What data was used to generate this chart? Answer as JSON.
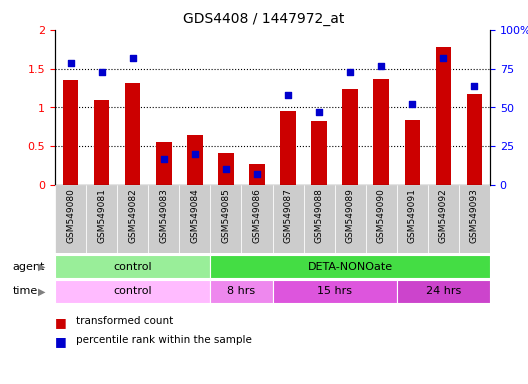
{
  "title": "GDS4408 / 1447972_at",
  "samples": [
    "GSM549080",
    "GSM549081",
    "GSM549082",
    "GSM549083",
    "GSM549084",
    "GSM549085",
    "GSM549086",
    "GSM549087",
    "GSM549088",
    "GSM549089",
    "GSM549090",
    "GSM549091",
    "GSM549092",
    "GSM549093"
  ],
  "red_values": [
    1.35,
    1.1,
    1.31,
    0.56,
    0.64,
    0.41,
    0.27,
    0.96,
    0.82,
    1.24,
    1.37,
    0.84,
    1.78,
    1.18
  ],
  "blue_percentiles": [
    79,
    73,
    82,
    17,
    20,
    10,
    7,
    58,
    47,
    73,
    77,
    52,
    82,
    64
  ],
  "ylim_left": [
    0,
    2
  ],
  "ylim_right": [
    0,
    100
  ],
  "yticks_left": [
    0,
    0.5,
    1.0,
    1.5,
    2.0
  ],
  "ytick_labels_left": [
    "0",
    "0.5",
    "1",
    "1.5",
    "2"
  ],
  "yticks_right": [
    0,
    25,
    50,
    75,
    100
  ],
  "ytick_labels_right": [
    "0",
    "25",
    "50",
    "75",
    "100%"
  ],
  "grid_lines": [
    0.5,
    1.0,
    1.5
  ],
  "bar_color_red": "#CC0000",
  "bar_color_blue": "#0000CC",
  "agent_groups": [
    {
      "label": "control",
      "start": 0,
      "end": 5,
      "color": "#99EE99"
    },
    {
      "label": "DETA-NONOate",
      "start": 5,
      "end": 14,
      "color": "#44DD44"
    }
  ],
  "time_groups": [
    {
      "label": "control",
      "start": 0,
      "end": 5,
      "color": "#FFBBFF"
    },
    {
      "label": "8 hrs",
      "start": 5,
      "end": 7,
      "color": "#EE88EE"
    },
    {
      "label": "15 hrs",
      "start": 7,
      "end": 11,
      "color": "#DD55DD"
    },
    {
      "label": "24 hrs",
      "start": 11,
      "end": 14,
      "color": "#CC44CC"
    }
  ],
  "legend_red_label": "transformed count",
  "legend_blue_label": "percentile rank within the sample",
  "bg_color": "#FFFFFF",
  "xtick_bg_color": "#CCCCCC",
  "agent_label": "agent",
  "time_label": "time",
  "bar_width": 0.5,
  "xlim": [
    -0.5,
    13.5
  ]
}
